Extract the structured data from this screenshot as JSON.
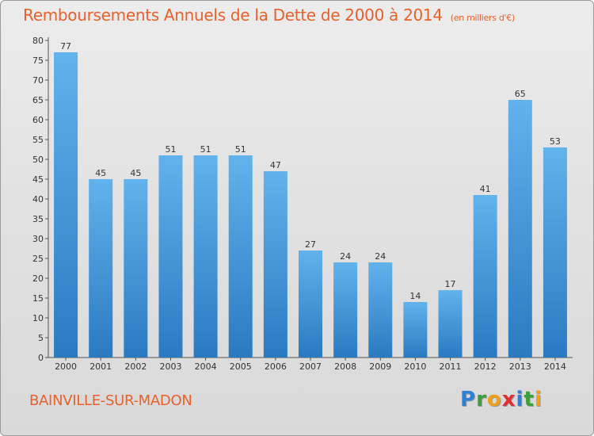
{
  "title": "Remboursements Annuels de la Dette de 2000 à 2014",
  "unit": "(en milliers d'€)",
  "city": "BAINVILLE-SUR-MADON",
  "logo": {
    "letters": [
      {
        "ch": "P",
        "color": "#2f7fd6"
      },
      {
        "ch": "r",
        "color": "#3aa03a"
      },
      {
        "ch": "o",
        "color": "#f0a020"
      },
      {
        "ch": "x",
        "color": "#e03030"
      },
      {
        "ch": "i",
        "color": "#2f7fd6"
      },
      {
        "ch": "t",
        "color": "#3aa03a"
      },
      {
        "ch": "i",
        "color": "#f0a020"
      }
    ]
  },
  "chart_data": {
    "type": "bar",
    "title": "Remboursements Annuels de la Dette de 2000 à 2014",
    "categories": [
      "2000",
      "2001",
      "2002",
      "2003",
      "2004",
      "2005",
      "2006",
      "2007",
      "2008",
      "2009",
      "2010",
      "2011",
      "2012",
      "2013",
      "2014"
    ],
    "values": [
      77,
      45,
      45,
      51,
      51,
      51,
      47,
      27,
      24,
      24,
      14,
      17,
      41,
      65,
      53
    ],
    "ylim": [
      0,
      80
    ],
    "yticks": [
      0,
      5,
      10,
      15,
      20,
      25,
      30,
      35,
      40,
      45,
      50,
      55,
      60,
      65,
      70,
      75,
      80
    ],
    "grid": false,
    "bar_color": "#3a8fd8",
    "xlabel": "",
    "ylabel": ""
  }
}
